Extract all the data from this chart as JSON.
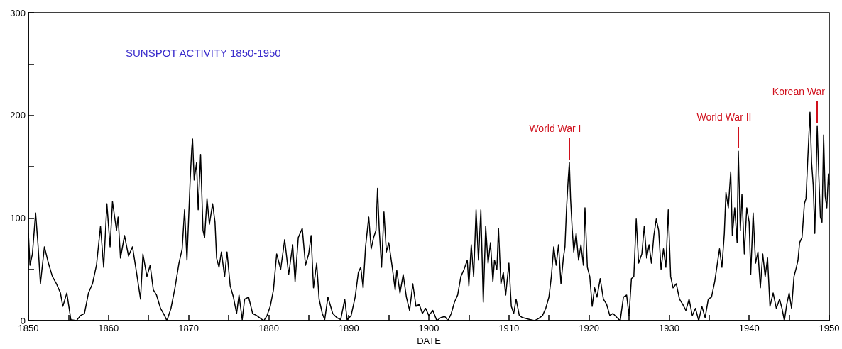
{
  "chart_data": {
    "type": "line",
    "title": "SUNSPOT ACTIVITY 1850-1950",
    "xlabel": "DATE",
    "xlim": [
      1850,
      1950
    ],
    "xticks": [
      1850,
      {
        "value": 1855,
        "label": null
      },
      1860,
      {
        "value": 1865,
        "label": null
      },
      1870,
      {
        "value": 1875,
        "label": null
      },
      1880,
      {
        "value": 1885,
        "label": null
      },
      1890,
      {
        "value": 1895,
        "label": null
      },
      1900,
      {
        "value": 1905,
        "label": null
      },
      1910,
      {
        "value": 1915,
        "label": null
      },
      1920,
      {
        "value": 1925,
        "label": null
      },
      1930,
      {
        "value": 1935,
        "label": null
      },
      1940,
      {
        "value": 1945,
        "label": null
      },
      1950
    ],
    "ylim": [
      0,
      300
    ],
    "yticks": [
      0,
      {
        "value": 50,
        "label": null
      },
      100,
      {
        "value": 150,
        "label": null
      },
      200,
      {
        "value": 250,
        "label": null
      },
      300
    ],
    "grid": false,
    "marker": "none",
    "line_style": "solid",
    "annotations": [
      {
        "text": "World War I",
        "x": 1917.55,
        "y": 154
      },
      {
        "text": "World War II",
        "x": 1938.65,
        "y": 165
      },
      {
        "text": "Korean War",
        "x": 1948.5,
        "y": 190
      }
    ],
    "series": [
      {
        "color": "#000000",
        "x": [
          1850.0,
          1850.2,
          1850.5,
          1850.9,
          1851.2,
          1851.5,
          1852.0,
          1852.5,
          1853.0,
          1853.5,
          1854.0,
          1854.3,
          1854.8,
          1855.3,
          1856.0,
          1856.5,
          1857.0,
          1857.5,
          1858.0,
          1858.5,
          1859.0,
          1859.4,
          1859.8,
          1860.2,
          1860.5,
          1861.0,
          1861.2,
          1861.5,
          1862.0,
          1862.5,
          1863.0,
          1863.5,
          1864.0,
          1864.3,
          1864.8,
          1865.2,
          1865.6,
          1866.0,
          1866.5,
          1867.0,
          1867.3,
          1867.8,
          1868.3,
          1868.8,
          1869.2,
          1869.5,
          1869.8,
          1870.2,
          1870.4,
          1870.5,
          1870.7,
          1871.0,
          1871.2,
          1871.5,
          1871.8,
          1872.0,
          1872.3,
          1872.6,
          1873.0,
          1873.3,
          1873.5,
          1873.8,
          1874.1,
          1874.5,
          1874.8,
          1875.2,
          1875.6,
          1876.0,
          1876.3,
          1876.7,
          1877.0,
          1877.5,
          1878.0,
          1878.5,
          1879.0,
          1879.4,
          1879.8,
          1880.2,
          1880.6,
          1881.0,
          1881.5,
          1882.0,
          1882.5,
          1883.0,
          1883.3,
          1883.7,
          1884.2,
          1884.6,
          1885.0,
          1885.3,
          1885.6,
          1886.0,
          1886.3,
          1886.7,
          1887.0,
          1887.4,
          1888.0,
          1888.5,
          1889.0,
          1889.5,
          1889.8,
          1890.3,
          1890.8,
          1891.2,
          1891.5,
          1891.8,
          1892.1,
          1892.5,
          1892.8,
          1893.1,
          1893.4,
          1893.6,
          1893.8,
          1894.1,
          1894.4,
          1894.7,
          1895.0,
          1895.4,
          1895.8,
          1896.0,
          1896.4,
          1896.8,
          1897.2,
          1897.6,
          1898.0,
          1898.4,
          1898.8,
          1899.2,
          1899.6,
          1900.0,
          1900.5,
          1901.0,
          1901.5,
          1902.0,
          1902.4,
          1902.8,
          1903.2,
          1903.6,
          1904.0,
          1904.4,
          1904.8,
          1905.0,
          1905.3,
          1905.6,
          1905.9,
          1906.2,
          1906.5,
          1906.8,
          1907.1,
          1907.4,
          1907.7,
          1908.0,
          1908.2,
          1908.5,
          1908.7,
          1909.0,
          1909.3,
          1909.6,
          1910.0,
          1910.3,
          1910.6,
          1910.9,
          1911.3,
          1911.7,
          1912.2,
          1912.7,
          1913.2,
          1913.7,
          1914.2,
          1914.6,
          1915.0,
          1915.3,
          1915.6,
          1915.9,
          1916.2,
          1916.5,
          1916.8,
          1917.0,
          1917.2,
          1917.4,
          1917.55,
          1917.7,
          1917.9,
          1918.1,
          1918.4,
          1918.7,
          1919.0,
          1919.3,
          1919.5,
          1919.8,
          1920.1,
          1920.4,
          1920.7,
          1921.0,
          1921.4,
          1921.8,
          1922.2,
          1922.6,
          1923.0,
          1923.5,
          1923.9,
          1924.3,
          1924.7,
          1925.0,
          1925.3,
          1925.6,
          1925.9,
          1926.2,
          1926.6,
          1926.9,
          1927.2,
          1927.5,
          1927.8,
          1928.1,
          1928.4,
          1928.7,
          1929.0,
          1929.3,
          1929.6,
          1929.9,
          1930.2,
          1930.5,
          1930.9,
          1931.3,
          1931.7,
          1932.1,
          1932.5,
          1932.9,
          1933.3,
          1933.7,
          1934.1,
          1934.5,
          1934.9,
          1935.3,
          1935.7,
          1936.0,
          1936.3,
          1936.6,
          1936.9,
          1937.1,
          1937.4,
          1937.7,
          1937.9,
          1938.2,
          1938.5,
          1938.65,
          1938.9,
          1939.1,
          1939.4,
          1939.7,
          1940.0,
          1940.2,
          1940.5,
          1940.8,
          1941.1,
          1941.4,
          1941.7,
          1942.0,
          1942.3,
          1942.6,
          1943.0,
          1943.4,
          1943.8,
          1944.1,
          1944.4,
          1944.7,
          1945.0,
          1945.3,
          1945.6,
          1945.9,
          1946.1,
          1946.3,
          1946.6,
          1946.9,
          1947.1,
          1947.3,
          1947.6,
          1947.8,
          1948.0,
          1948.2,
          1948.5,
          1948.7,
          1948.9,
          1949.1,
          1949.3,
          1949.5,
          1949.7,
          1949.9,
          1950.0
        ],
        "values": [
          85,
          54,
          65,
          105,
          74,
          36,
          72,
          56,
          43,
          36,
          27,
          14,
          27,
          1,
          0,
          5,
          7,
          27,
          36,
          54,
          92,
          52,
          114,
          72,
          116,
          88,
          101,
          61,
          83,
          63,
          72,
          47,
          21,
          65,
          43,
          54,
          30,
          25,
          12,
          5,
          0,
          12,
          32,
          56,
          70,
          108,
          59,
          137,
          168,
          177,
          137,
          154,
          108,
          162,
          88,
          81,
          119,
          94,
          114,
          96,
          61,
          52,
          67,
          43,
          67,
          34,
          23,
          7,
          25,
          1,
          21,
          23,
          7,
          5,
          2,
          0,
          5,
          14,
          30,
          65,
          50,
          79,
          45,
          74,
          38,
          81,
          90,
          54,
          65,
          83,
          32,
          56,
          21,
          7,
          1,
          23,
          7,
          3,
          1,
          21,
          1,
          5,
          23,
          47,
          52,
          32,
          72,
          101,
          70,
          81,
          88,
          129,
          90,
          52,
          106,
          67,
          76,
          54,
          30,
          49,
          27,
          45,
          23,
          10,
          36,
          14,
          16,
          7,
          12,
          5,
          10,
          0,
          3,
          4,
          0,
          7,
          18,
          25,
          43,
          50,
          59,
          34,
          74,
          43,
          108,
          59,
          108,
          18,
          92,
          56,
          76,
          38,
          59,
          50,
          90,
          36,
          47,
          25,
          56,
          14,
          7,
          21,
          5,
          3,
          2,
          1,
          0,
          2,
          5,
          12,
          23,
          43,
          72,
          54,
          74,
          36,
          61,
          72,
          110,
          137,
          154,
          119,
          90,
          67,
          85,
          59,
          74,
          54,
          110,
          52,
          43,
          14,
          32,
          23,
          41,
          21,
          16,
          5,
          7,
          3,
          0,
          23,
          25,
          5,
          41,
          43,
          99,
          56,
          65,
          92,
          61,
          74,
          56,
          83,
          99,
          88,
          50,
          70,
          52,
          108,
          43,
          32,
          36,
          21,
          16,
          10,
          21,
          5,
          12,
          0,
          14,
          3,
          21,
          23,
          38,
          54,
          70,
          52,
          85,
          125,
          110,
          145,
          83,
          110,
          76,
          165,
          88,
          123,
          65,
          110,
          96,
          45,
          105,
          56,
          67,
          32,
          65,
          43,
          61,
          14,
          27,
          12,
          21,
          12,
          0,
          16,
          27,
          12,
          43,
          52,
          59,
          76,
          81,
          114,
          119,
          154,
          203,
          154,
          132,
          85,
          190,
          141,
          101,
          96,
          181,
          121,
          110,
          143,
          132
        ]
      }
    ]
  }
}
